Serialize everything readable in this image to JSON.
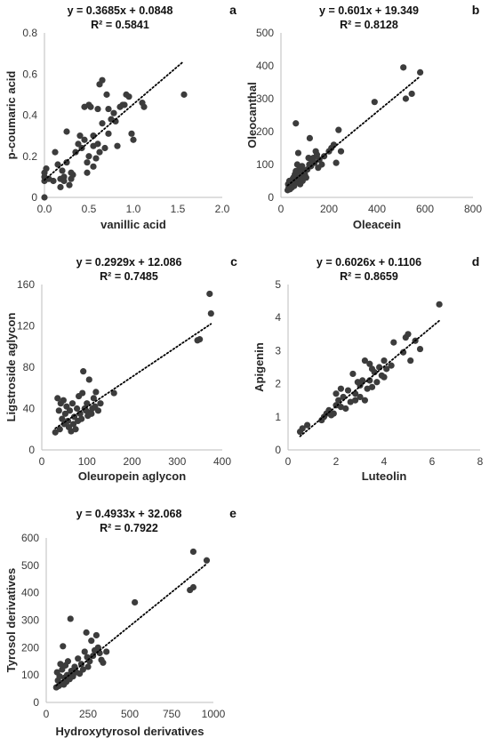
{
  "chart_data": [
    {
      "type": "scatter",
      "panel_label": "a",
      "xlabel": "vanillic acid",
      "ylabel": "p-coumaric acid",
      "xlim": [
        0,
        2.0
      ],
      "ylim": [
        0,
        0.8
      ],
      "xticks": [
        "0.0",
        "0.5",
        "1.0",
        "1.5",
        "2.0"
      ],
      "yticks": [
        "0",
        "0.2",
        "0.4",
        "0.6",
        "0.8"
      ],
      "equation": "y = 0.3685x + 0.0848",
      "r2": "R² = 0.5841",
      "trend": {
        "slope": 0.3685,
        "intercept": 0.0848,
        "x_range": [
          0.0,
          1.56
        ]
      },
      "points": [
        [
          0.0,
          0.0
        ],
        [
          0.0,
          0.08
        ],
        [
          0.0,
          0.1
        ],
        [
          0.0,
          0.12
        ],
        [
          0.02,
          0.14
        ],
        [
          0.05,
          0.09
        ],
        [
          0.1,
          0.08
        ],
        [
          0.12,
          0.22
        ],
        [
          0.15,
          0.16
        ],
        [
          0.18,
          0.05
        ],
        [
          0.18,
          0.09
        ],
        [
          0.2,
          0.13
        ],
        [
          0.22,
          0.08
        ],
        [
          0.22,
          0.1
        ],
        [
          0.25,
          0.32
        ],
        [
          0.25,
          0.17
        ],
        [
          0.28,
          0.06
        ],
        [
          0.3,
          0.12
        ],
        [
          0.3,
          0.09
        ],
        [
          0.32,
          0.11
        ],
        [
          0.35,
          0.22
        ],
        [
          0.38,
          0.26
        ],
        [
          0.4,
          0.3
        ],
        [
          0.42,
          0.24
        ],
        [
          0.45,
          0.44
        ],
        [
          0.45,
          0.28
        ],
        [
          0.48,
          0.17
        ],
        [
          0.48,
          0.12
        ],
        [
          0.5,
          0.45
        ],
        [
          0.5,
          0.2
        ],
        [
          0.52,
          0.44
        ],
        [
          0.55,
          0.3
        ],
        [
          0.55,
          0.15
        ],
        [
          0.55,
          0.25
        ],
        [
          0.58,
          0.19
        ],
        [
          0.6,
          0.26
        ],
        [
          0.6,
          0.43
        ],
        [
          0.62,
          0.55
        ],
        [
          0.62,
          0.22
        ],
        [
          0.65,
          0.57
        ],
        [
          0.65,
          0.36
        ],
        [
          0.68,
          0.24
        ],
        [
          0.7,
          0.5
        ],
        [
          0.72,
          0.43
        ],
        [
          0.72,
          0.31
        ],
        [
          0.75,
          0.38
        ],
        [
          0.78,
          0.41
        ],
        [
          0.8,
          0.37
        ],
        [
          0.82,
          0.25
        ],
        [
          0.85,
          0.44
        ],
        [
          0.88,
          0.45
        ],
        [
          0.9,
          0.45
        ],
        [
          0.92,
          0.5
        ],
        [
          0.95,
          0.49
        ],
        [
          0.98,
          0.31
        ],
        [
          1.0,
          0.28
        ],
        [
          1.1,
          0.46
        ],
        [
          1.12,
          0.44
        ],
        [
          1.57,
          0.5
        ]
      ]
    },
    {
      "type": "scatter",
      "panel_label": "b",
      "xlabel": "Oleacein",
      "ylabel": "Oleocanthal",
      "xlim": [
        0,
        800
      ],
      "ylim": [
        0,
        500
      ],
      "xticks": [
        "0",
        "200",
        "400",
        "600",
        "800"
      ],
      "yticks": [
        "0",
        "100",
        "200",
        "300",
        "400",
        "500"
      ],
      "equation": "y = 0.601x + 19.349",
      "r2": "R² = 0.8128",
      "trend": {
        "slope": 0.601,
        "intercept": 19.349,
        "x_range": [
          28,
          580
        ]
      },
      "points": [
        [
          28,
          22
        ],
        [
          30,
          40
        ],
        [
          32,
          30
        ],
        [
          35,
          50
        ],
        [
          38,
          25
        ],
        [
          40,
          35
        ],
        [
          42,
          45
        ],
        [
          45,
          30
        ],
        [
          48,
          55
        ],
        [
          50,
          40
        ],
        [
          52,
          60
        ],
        [
          55,
          35
        ],
        [
          58,
          70
        ],
        [
          60,
          45
        ],
        [
          62,
          225
        ],
        [
          62,
          80
        ],
        [
          65,
          50
        ],
        [
          68,
          100
        ],
        [
          70,
          60
        ],
        [
          72,
          135
        ],
        [
          75,
          55
        ],
        [
          78,
          90
        ],
        [
          80,
          40
        ],
        [
          82,
          75
        ],
        [
          85,
          65
        ],
        [
          88,
          95
        ],
        [
          90,
          50
        ],
        [
          95,
          80
        ],
        [
          100,
          70
        ],
        [
          105,
          60
        ],
        [
          110,
          85
        ],
        [
          115,
          120
        ],
        [
          118,
          100
        ],
        [
          120,
          180
        ],
        [
          125,
          95
        ],
        [
          130,
          110
        ],
        [
          135,
          120
        ],
        [
          140,
          105
        ],
        [
          145,
          140
        ],
        [
          150,
          130
        ],
        [
          155,
          90
        ],
        [
          160,
          115
        ],
        [
          170,
          100
        ],
        [
          180,
          125
        ],
        [
          200,
          140
        ],
        [
          210,
          150
        ],
        [
          220,
          160
        ],
        [
          230,
          105
        ],
        [
          240,
          205
        ],
        [
          250,
          140
        ],
        [
          390,
          290
        ],
        [
          510,
          395
        ],
        [
          520,
          300
        ],
        [
          545,
          315
        ],
        [
          580,
          380
        ]
      ]
    },
    {
      "type": "scatter",
      "panel_label": "c",
      "xlabel": "Oleuropein aglycon",
      "ylabel": "Ligstroside aglycon",
      "xlim": [
        0,
        400
      ],
      "ylim": [
        0,
        160
      ],
      "xticks": [
        "0",
        "100",
        "200",
        "300",
        "400"
      ],
      "yticks": [
        "0",
        "40",
        "80",
        "120",
        "160"
      ],
      "equation": "y = 0.2929x + 12.086",
      "r2": "R² = 0.7485",
      "trend": {
        "slope": 0.2929,
        "intercept": 12.086,
        "x_range": [
          30,
          375
        ]
      },
      "points": [
        [
          30,
          17
        ],
        [
          35,
          50
        ],
        [
          38,
          38
        ],
        [
          40,
          20
        ],
        [
          42,
          45
        ],
        [
          45,
          30
        ],
        [
          48,
          48
        ],
        [
          50,
          25
        ],
        [
          52,
          35
        ],
        [
          55,
          42
        ],
        [
          58,
          28
        ],
        [
          60,
          22
        ],
        [
          62,
          38
        ],
        [
          65,
          18
        ],
        [
          68,
          45
        ],
        [
          70,
          25
        ],
        [
          72,
          32
        ],
        [
          75,
          20
        ],
        [
          78,
          40
        ],
        [
          80,
          28
        ],
        [
          82,
          52
        ],
        [
          85,
          35
        ],
        [
          88,
          30
        ],
        [
          90,
          55
        ],
        [
          92,
          76
        ],
        [
          95,
          40
        ],
        [
          98,
          38
        ],
        [
          100,
          45
        ],
        [
          102,
          33
        ],
        [
          105,
          68
        ],
        [
          108,
          36
        ],
        [
          110,
          35
        ],
        [
          112,
          40
        ],
        [
          115,
          50
        ],
        [
          118,
          42
        ],
        [
          120,
          56
        ],
        [
          125,
          38
        ],
        [
          130,
          45
        ],
        [
          160,
          55
        ],
        [
          345,
          106
        ],
        [
          350,
          107
        ],
        [
          372,
          151
        ],
        [
          375,
          132
        ]
      ]
    },
    {
      "type": "scatter",
      "panel_label": "d",
      "xlabel": "Luteolin",
      "ylabel": "Apigenin",
      "xlim": [
        0,
        8
      ],
      "ylim": [
        0,
        5
      ],
      "xticks": [
        "0",
        "2",
        "4",
        "6",
        "8"
      ],
      "yticks": [
        "0",
        "1",
        "2",
        "3",
        "4",
        "5"
      ],
      "equation": "y = 0.6026x + 0.1106",
      "r2": "R² = 0.8659",
      "trend": {
        "slope": 0.6026,
        "intercept": 0.1106,
        "x_range": [
          0.5,
          6.3
        ]
      },
      "points": [
        [
          0.5,
          0.55
        ],
        [
          0.6,
          0.65
        ],
        [
          0.8,
          0.75
        ],
        [
          1.4,
          0.9
        ],
        [
          1.5,
          1.0
        ],
        [
          1.6,
          1.1
        ],
        [
          1.7,
          1.2
        ],
        [
          1.8,
          1.05
        ],
        [
          1.9,
          1.1
        ],
        [
          2.0,
          1.35
        ],
        [
          2.0,
          1.7
        ],
        [
          2.1,
          1.5
        ],
        [
          2.2,
          1.3
        ],
        [
          2.2,
          1.85
        ],
        [
          2.3,
          1.6
        ],
        [
          2.4,
          1.25
        ],
        [
          2.5,
          1.8
        ],
        [
          2.6,
          1.45
        ],
        [
          2.7,
          2.3
        ],
        [
          2.8,
          1.7
        ],
        [
          2.8,
          1.5
        ],
        [
          2.9,
          2.05
        ],
        [
          3.0,
          1.6
        ],
        [
          3.0,
          1.95
        ],
        [
          3.1,
          2.1
        ],
        [
          3.2,
          1.5
        ],
        [
          3.2,
          2.7
        ],
        [
          3.3,
          1.85
        ],
        [
          3.4,
          2.6
        ],
        [
          3.4,
          2.1
        ],
        [
          3.5,
          1.9
        ],
        [
          3.5,
          2.45
        ],
        [
          3.6,
          2.35
        ],
        [
          3.7,
          2.05
        ],
        [
          3.8,
          2.5
        ],
        [
          3.9,
          2.25
        ],
        [
          4.0,
          2.7
        ],
        [
          4.0,
          2.2
        ],
        [
          4.1,
          2.45
        ],
        [
          4.3,
          2.55
        ],
        [
          4.4,
          3.25
        ],
        [
          4.8,
          2.95
        ],
        [
          4.9,
          3.4
        ],
        [
          5.0,
          3.5
        ],
        [
          5.1,
          2.7
        ],
        [
          5.3,
          3.3
        ],
        [
          5.5,
          3.05
        ],
        [
          6.3,
          4.4
        ]
      ]
    },
    {
      "type": "scatter",
      "panel_label": "e",
      "xlabel": "Hydroxytyrosol derivatives",
      "ylabel": "Tyrosol derivatives",
      "xlim": [
        0,
        1000
      ],
      "ylim": [
        0,
        600
      ],
      "xticks": [
        "0",
        "250",
        "500",
        "750",
        "1000"
      ],
      "yticks": [
        "0",
        "100",
        "200",
        "300",
        "400",
        "500",
        "600"
      ],
      "equation": "y = 0.4933x + 32.068",
      "r2": "R² = 0.7922",
      "trend": {
        "slope": 0.4933,
        "intercept": 32.068,
        "x_range": [
          60,
          960
        ]
      },
      "points": [
        [
          60,
          55
        ],
        [
          65,
          110
        ],
        [
          70,
          80
        ],
        [
          75,
          60
        ],
        [
          80,
          95
        ],
        [
          85,
          140
        ],
        [
          90,
          70
        ],
        [
          95,
          120
        ],
        [
          100,
          205
        ],
        [
          105,
          65
        ],
        [
          110,
          90
        ],
        [
          115,
          135
        ],
        [
          120,
          75
        ],
        [
          125,
          100
        ],
        [
          130,
          150
        ],
        [
          140,
          85
        ],
        [
          145,
          305
        ],
        [
          150,
          115
        ],
        [
          160,
          95
        ],
        [
          170,
          130
        ],
        [
          180,
          110
        ],
        [
          190,
          160
        ],
        [
          200,
          105
        ],
        [
          210,
          140
        ],
        [
          220,
          120
        ],
        [
          230,
          185
        ],
        [
          240,
          255
        ],
        [
          245,
          165
        ],
        [
          250,
          130
        ],
        [
          260,
          150
        ],
        [
          270,
          225
        ],
        [
          280,
          170
        ],
        [
          290,
          190
        ],
        [
          300,
          245
        ],
        [
          310,
          200
        ],
        [
          320,
          180
        ],
        [
          330,
          155
        ],
        [
          340,
          145
        ],
        [
          360,
          185
        ],
        [
          530,
          365
        ],
        [
          860,
          410
        ],
        [
          880,
          420
        ],
        [
          880,
          550
        ],
        [
          960,
          518
        ]
      ]
    }
  ],
  "style": {
    "marker_color": "#3c3c3c",
    "axis_color": "#bdbdbd",
    "trend_color": "#000000"
  }
}
